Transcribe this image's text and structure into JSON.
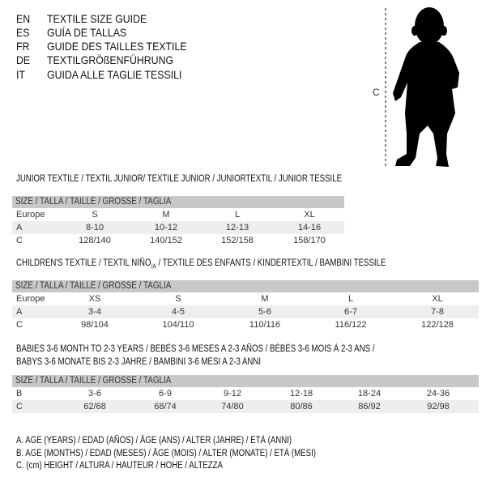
{
  "languages": [
    {
      "code": "EN",
      "text": "TEXTILE SIZE GUIDE"
    },
    {
      "code": "ES",
      "text": "GUÍA DE TALLAS"
    },
    {
      "code": "FR",
      "text": "GUIDE DES TAILLES TEXTILE"
    },
    {
      "code": "DE",
      "text": "TEXTILGRÖßENFÜHRUNG"
    },
    {
      "code": "IT",
      "text": "GUIDA ALLE TAGLIE TESSILI"
    }
  ],
  "figure": {
    "measure_label": "C"
  },
  "size_header": "SIZE / TALLA / TAILLE / GRÖSSE / TAGLIA",
  "junior": {
    "title": "JUNIOR TEXTILE / TEXTIL JUNIOR/ TEXTILE JUNIOR / JUNIORTEXTIL / JUNIOR TESSILE",
    "rows": [
      {
        "label": "Europe",
        "values": [
          "S",
          "M",
          "L",
          "XL"
        ]
      },
      {
        "label": "A",
        "values": [
          "8-10",
          "10-12",
          "12-13",
          "14-16"
        ]
      },
      {
        "label": "C",
        "values": [
          "128/140",
          "140/152",
          "152/158",
          "158/170"
        ]
      }
    ]
  },
  "children": {
    "title": "CHILDREN'S TEXTILE / TEXTIL NIÑO",
    "title_sub": "/A",
    "title_rest": " / TEXTILE DES ENFANTS / KINDERTEXTIL / BAMBINI TESSILE",
    "rows": [
      {
        "label": "Europe",
        "values": [
          "XS",
          "S",
          "M",
          "L",
          "XL"
        ]
      },
      {
        "label": "A",
        "values": [
          "3-4",
          "4-5",
          "5-6",
          "6-7",
          "7-8"
        ]
      },
      {
        "label": "C",
        "values": [
          "98/104",
          "104/110",
          "110/116",
          "116/122",
          "122/128"
        ]
      }
    ]
  },
  "babies": {
    "title_line1": "BABIES 3-6 MONTH TO 2-3 YEARS / BEBÉS 3-6 MESES A 2-3 AÑOS / BÉBÉS 3-6 MOIS À 2-3 ANS /",
    "title_line2": "BABYS 3-6 MONATE BIS 2-3 JAHRE / BAMBINI 3-6 MESI A 2-3 ANNI",
    "rows": [
      {
        "label": "B",
        "values": [
          "3-6",
          "6-9",
          "9-12",
          "12-18",
          "18-24",
          "24-36"
        ]
      },
      {
        "label": "C",
        "values": [
          "62/68",
          "68/74",
          "74/80",
          "80/86",
          "86/92",
          "92/98"
        ]
      }
    ]
  },
  "legend": [
    "A. AGE (YEARS) / EDAD (AÑOS) / ÂGE (ANS) / ALTER (JAHRE) / ETÀ (ANNI)",
    "B. AGE (MONTHS) / EDAD (MESES) / ÂGE (MOIS) / ALTER (MONATE) / ETÀ (MESI)",
    "C. (cm) HEIGHT / ALTURA / HAUTEUR / HÖHE / ALTEZZA"
  ]
}
